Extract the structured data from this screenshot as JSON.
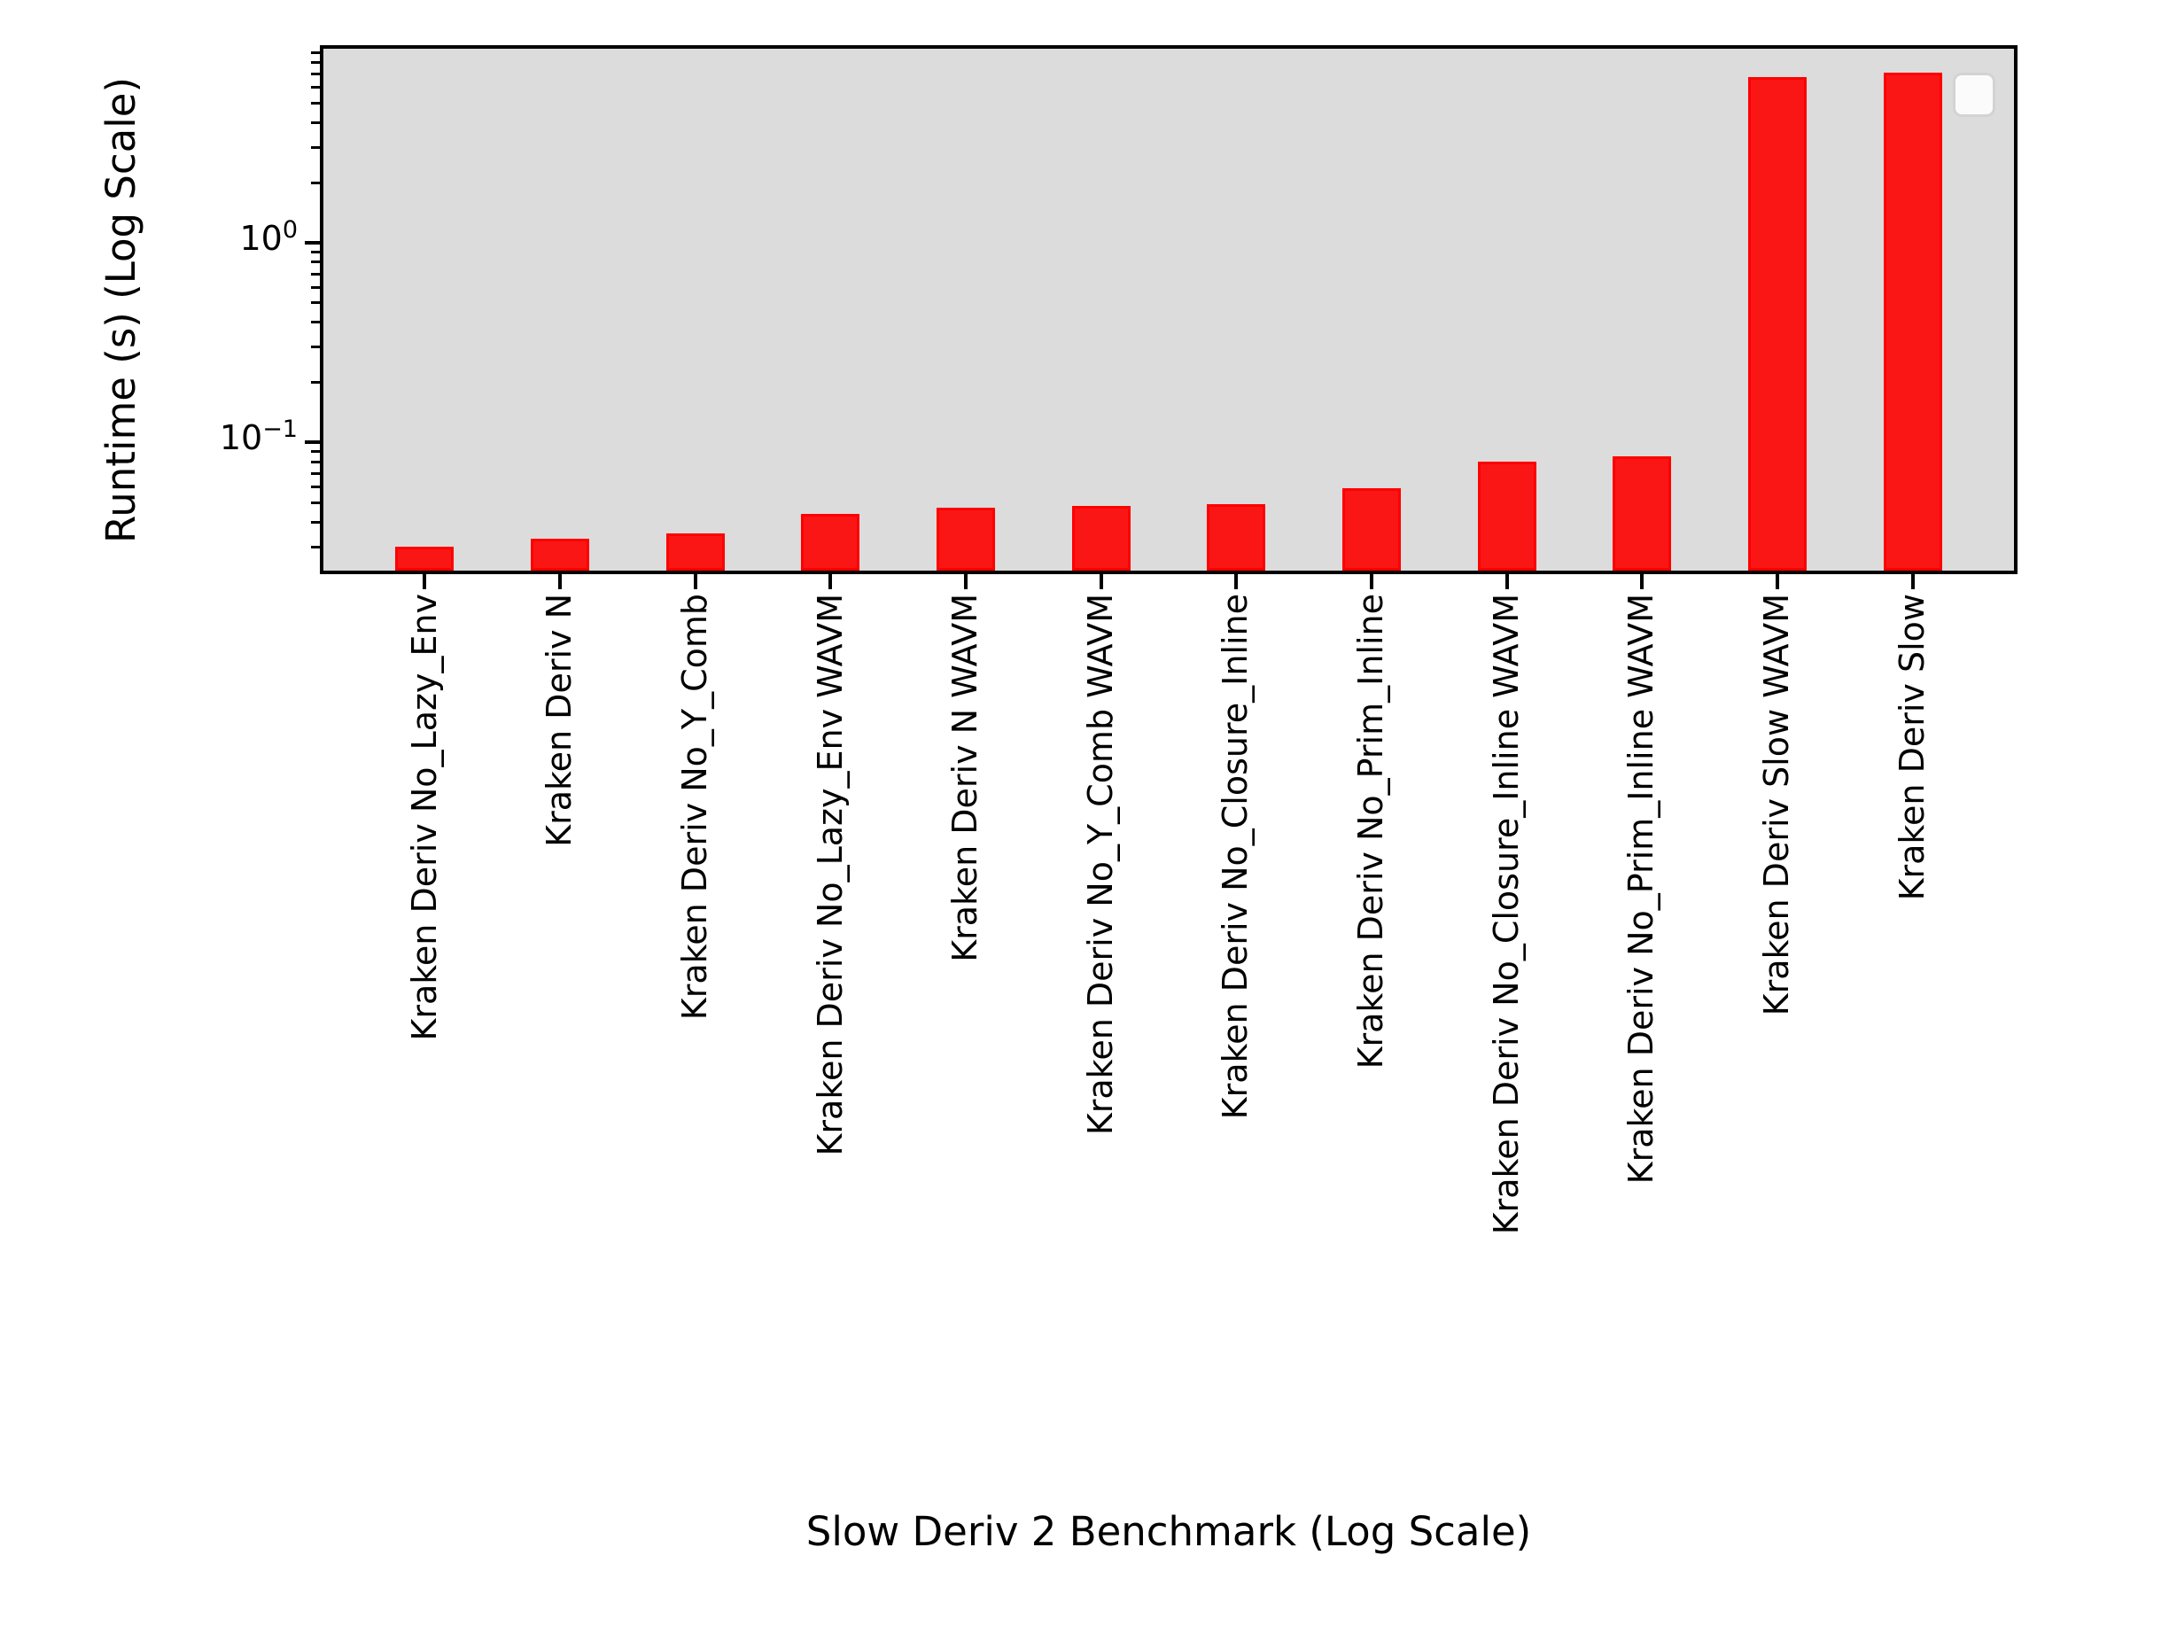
{
  "figure": {
    "background": "#ffffff",
    "plot_background": "#dcdcdc",
    "spine_color": "#000000"
  },
  "legend": {
    "visible": true,
    "style": "empty rounded white box, upper right",
    "items": []
  },
  "chart_data": {
    "type": "bar",
    "title": "",
    "xlabel": "Slow Deriv 2 Benchmark (Log Scale)",
    "ylabel": "Runtime (s) (Log Scale)",
    "yscale": "log",
    "ylim": [
      0.0228,
      9.4
    ],
    "grid": false,
    "legend_position": "upper right (empty box, no entries)",
    "bar_fill_color": "#fb1616",
    "bar_edge_color": "#ff0000",
    "categories": [
      "Kraken Deriv No_Lazy_Env",
      "Kraken Deriv N",
      "Kraken Deriv No_Y_Comb",
      "Kraken Deriv No_Lazy_Env WAVM",
      "Kraken Deriv N WAVM",
      "Kraken Deriv No_Y_Comb WAVM",
      "Kraken Deriv No_Closure_Inline",
      "Kraken Deriv No_Prim_Inline",
      "Kraken Deriv No_Closure_Inline WAVM",
      "Kraken Deriv No_Prim_Inline WAVM",
      "Kraken Deriv Slow WAVM",
      "Kraken Deriv Slow"
    ],
    "values": [
      0.03,
      0.033,
      0.035,
      0.044,
      0.047,
      0.048,
      0.049,
      0.059,
      0.08,
      0.085,
      6.8,
      7.15
    ],
    "y_major_ticks": [
      {
        "value": 1,
        "base": "10",
        "exponent": "0"
      },
      {
        "value": 0.1,
        "base": "10",
        "exponent": "−1"
      }
    ],
    "y_minor_tick_decades": [
      -2,
      -1,
      0
    ]
  }
}
